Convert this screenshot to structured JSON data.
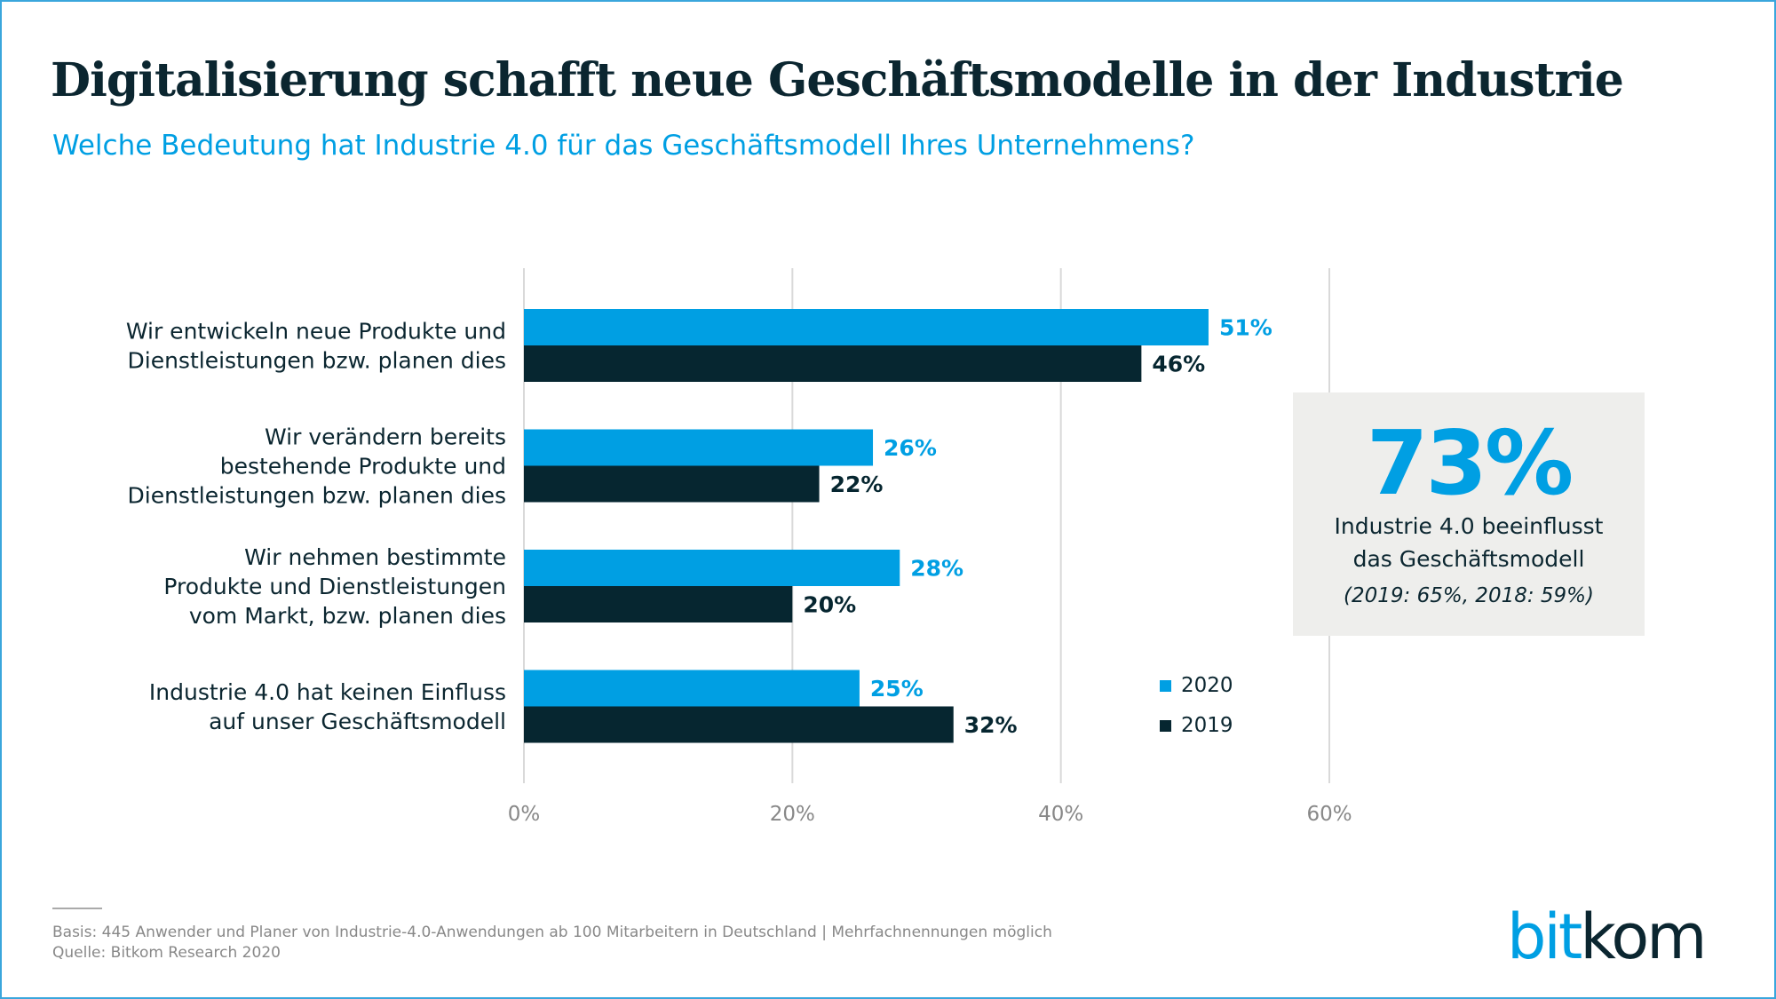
{
  "header": {
    "title": "Digitalisierung schafft neue Geschäftsmodelle in der Industrie",
    "subtitle": "Welche Bedeutung hat Industrie 4.0 für das Geschäftsmodell Ihres Unternehmens?"
  },
  "chart_data": {
    "type": "bar",
    "orientation": "horizontal",
    "categories": [
      [
        "Wir entwickeln neue Produkte und",
        "Dienstleistungen bzw. planen dies"
      ],
      [
        "Wir verändern bereits",
        "bestehende Produkte und",
        "Dienstleistungen bzw. planen dies"
      ],
      [
        "Wir nehmen bestimmte",
        "Produkte und Dienstleistungen",
        "vom Markt, bzw. planen dies"
      ],
      [
        "Industrie 4.0 hat keinen Einfluss",
        "auf unser Geschäftsmodell"
      ]
    ],
    "series": [
      {
        "name": "2020",
        "color": "#009fe3",
        "values": [
          51,
          26,
          28,
          25
        ],
        "labels": [
          "51%",
          "26%",
          "28%",
          "25%"
        ]
      },
      {
        "name": "2019",
        "color": "#062630",
        "values": [
          46,
          22,
          20,
          32
        ],
        "labels": [
          "46%",
          "22%",
          "20%",
          "32%"
        ]
      }
    ],
    "xlim": [
      0,
      60
    ],
    "xticks": [
      {
        "v": 0,
        "label": "0%"
      },
      {
        "v": 20,
        "label": "20%"
      },
      {
        "v": 40,
        "label": "40%"
      },
      {
        "v": 60,
        "label": "60%"
      }
    ],
    "grid": true,
    "legend": "bottom-right"
  },
  "callout": {
    "value": "73%",
    "line1": "Industrie 4.0 beeinflusst",
    "line2": "das Geschäftsmodell",
    "note": "(2019: 65%, 2018: 59%)"
  },
  "footer": {
    "basis": "Basis: 445 Anwender und Planer von Industrie-4.0-Anwendungen ab 100 Mitarbeitern in Deutschland | Mehrfachnennungen möglich",
    "source": "Quelle: Bitkom Research 2020"
  },
  "logo": {
    "part1": "bit",
    "part2": "kom",
    "color1": "#009fe3",
    "color2": "#0b2630"
  }
}
